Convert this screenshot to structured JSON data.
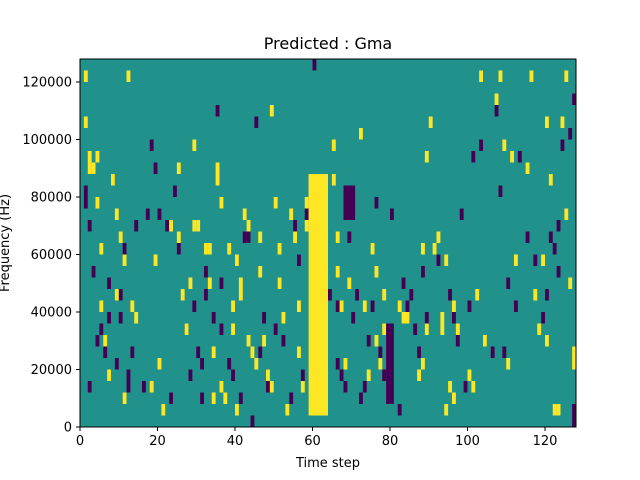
{
  "chart_data": {
    "type": "heatmap",
    "title": "Predicted : Gma",
    "xlabel": "Time step",
    "ylabel": "Frequency (Hz)",
    "xlim": [
      0,
      128
    ],
    "ylim": [
      0,
      128000
    ],
    "x_ticks": [
      0,
      20,
      40,
      60,
      80,
      100,
      120
    ],
    "y_ticks": [
      0,
      20000,
      40000,
      60000,
      80000,
      100000,
      120000
    ],
    "cell_height_hz": 4000,
    "background_value": 0,
    "colormap": {
      "-1": "#440154",
      "0": "#21918c",
      "1": "#fde725"
    },
    "dense_columns": [
      {
        "x0": 59,
        "x1": 64,
        "y0": 4000,
        "y1": 88000,
        "value": 1,
        "note": "central bright vertical band"
      },
      {
        "x0": 68,
        "x1": 71,
        "y0": 72000,
        "y1": 84000,
        "value": -1
      },
      {
        "x0": 79,
        "x1": 81,
        "y0": 8000,
        "y1": 36000,
        "value": -1
      }
    ],
    "cells_high": [
      [
        1,
        120000
      ],
      [
        1,
        104000
      ],
      [
        2,
        92000
      ],
      [
        2,
        88000
      ],
      [
        3,
        88000
      ],
      [
        4,
        92000
      ],
      [
        4,
        76000
      ],
      [
        5,
        60000
      ],
      [
        5,
        40000
      ],
      [
        6,
        28000
      ],
      [
        7,
        16000
      ],
      [
        8,
        84000
      ],
      [
        9,
        72000
      ],
      [
        9,
        44000
      ],
      [
        10,
        64000
      ],
      [
        11,
        56000
      ],
      [
        11,
        8000
      ],
      [
        12,
        120000
      ],
      [
        13,
        40000
      ],
      [
        14,
        36000
      ],
      [
        18,
        12000
      ],
      [
        19,
        56000
      ],
      [
        20,
        20000
      ],
      [
        21,
        4000
      ],
      [
        23,
        68000
      ],
      [
        25,
        88000
      ],
      [
        25,
        64000
      ],
      [
        26,
        44000
      ],
      [
        27,
        32000
      ],
      [
        28,
        48000
      ],
      [
        29,
        68000
      ],
      [
        30,
        68000
      ],
      [
        29,
        96000
      ],
      [
        32,
        60000
      ],
      [
        33,
        60000
      ],
      [
        33,
        48000
      ],
      [
        34,
        24000
      ],
      [
        34,
        8000
      ],
      [
        35,
        84000
      ],
      [
        35,
        88000
      ],
      [
        36,
        12000
      ],
      [
        36,
        76000
      ],
      [
        37,
        8000
      ],
      [
        38,
        60000
      ],
      [
        39,
        40000
      ],
      [
        39,
        32000
      ],
      [
        40,
        56000
      ],
      [
        40,
        4000
      ],
      [
        41,
        44000
      ],
      [
        41,
        48000
      ],
      [
        42,
        72000
      ],
      [
        43,
        68000
      ],
      [
        43,
        28000
      ],
      [
        44,
        24000
      ],
      [
        45,
        20000
      ],
      [
        46,
        52000
      ],
      [
        46,
        64000
      ],
      [
        47,
        28000
      ],
      [
        48,
        16000
      ],
      [
        49,
        12000
      ],
      [
        49,
        108000
      ],
      [
        50,
        76000
      ],
      [
        51,
        60000
      ],
      [
        51,
        48000
      ],
      [
        52,
        36000
      ],
      [
        53,
        4000
      ],
      [
        54,
        72000
      ],
      [
        55,
        64000
      ],
      [
        56,
        40000
      ],
      [
        56,
        24000
      ],
      [
        57,
        12000
      ],
      [
        58,
        76000
      ],
      [
        58,
        68000
      ],
      [
        59,
        80000
      ],
      [
        59,
        84000
      ],
      [
        65,
        96000
      ],
      [
        65,
        84000
      ],
      [
        66,
        64000
      ],
      [
        66,
        52000
      ],
      [
        67,
        40000
      ],
      [
        68,
        20000
      ],
      [
        69,
        48000
      ],
      [
        72,
        100000
      ],
      [
        73,
        40000
      ],
      [
        74,
        16000
      ],
      [
        75,
        60000
      ],
      [
        76,
        52000
      ],
      [
        76,
        28000
      ],
      [
        77,
        20000
      ],
      [
        78,
        44000
      ],
      [
        78,
        32000
      ],
      [
        82,
        40000
      ],
      [
        83,
        36000
      ],
      [
        84,
        36000
      ],
      [
        87,
        16000
      ],
      [
        88,
        60000
      ],
      [
        88,
        20000
      ],
      [
        89,
        92000
      ],
      [
        89,
        32000
      ],
      [
        90,
        104000
      ],
      [
        91,
        60000
      ],
      [
        92,
        64000
      ],
      [
        93,
        36000
      ],
      [
        93,
        32000
      ],
      [
        94,
        4000
      ],
      [
        94,
        56000
      ],
      [
        95,
        12000
      ],
      [
        96,
        8000
      ],
      [
        96,
        40000
      ],
      [
        97,
        32000
      ],
      [
        100,
        16000
      ],
      [
        101,
        12000
      ],
      [
        102,
        44000
      ],
      [
        103,
        120000
      ],
      [
        104,
        28000
      ],
      [
        107,
        112000
      ],
      [
        108,
        120000
      ],
      [
        109,
        96000
      ],
      [
        110,
        20000
      ],
      [
        111,
        92000
      ],
      [
        112,
        56000
      ],
      [
        115,
        88000
      ],
      [
        116,
        120000
      ],
      [
        117,
        44000
      ],
      [
        118,
        32000
      ],
      [
        119,
        56000
      ],
      [
        120,
        28000
      ],
      [
        120,
        104000
      ],
      [
        121,
        84000
      ],
      [
        122,
        4000
      ],
      [
        123,
        4000
      ],
      [
        124,
        104000
      ],
      [
        125,
        72000
      ],
      [
        125,
        120000
      ],
      [
        126,
        48000
      ],
      [
        127,
        20000
      ],
      [
        127,
        24000
      ]
    ],
    "cells_low": [
      [
        1,
        80000
      ],
      [
        1,
        76000
      ],
      [
        2,
        68000
      ],
      [
        2,
        12000
      ],
      [
        3,
        52000
      ],
      [
        4,
        28000
      ],
      [
        5,
        32000
      ],
      [
        6,
        24000
      ],
      [
        7,
        48000
      ],
      [
        7,
        36000
      ],
      [
        8,
        84000
      ],
      [
        9,
        20000
      ],
      [
        10,
        44000
      ],
      [
        10,
        36000
      ],
      [
        11,
        60000
      ],
      [
        11,
        8000
      ],
      [
        12,
        16000
      ],
      [
        12,
        12000
      ],
      [
        13,
        24000
      ],
      [
        14,
        68000
      ],
      [
        17,
        72000
      ],
      [
        16,
        12000
      ],
      [
        18,
        96000
      ],
      [
        19,
        88000
      ],
      [
        20,
        72000
      ],
      [
        22,
        68000
      ],
      [
        23,
        8000
      ],
      [
        24,
        80000
      ],
      [
        25,
        60000
      ],
      [
        27,
        32000
      ],
      [
        28,
        16000
      ],
      [
        29,
        40000
      ],
      [
        30,
        24000
      ],
      [
        31,
        20000
      ],
      [
        31,
        8000
      ],
      [
        32,
        52000
      ],
      [
        32,
        44000
      ],
      [
        34,
        36000
      ],
      [
        35,
        108000
      ],
      [
        36,
        48000
      ],
      [
        36,
        32000
      ],
      [
        38,
        20000
      ],
      [
        39,
        16000
      ],
      [
        40,
        56000
      ],
      [
        41,
        8000
      ],
      [
        42,
        64000
      ],
      [
        43,
        64000
      ],
      [
        44,
        0
      ],
      [
        45,
        104000
      ],
      [
        46,
        24000
      ],
      [
        47,
        36000
      ],
      [
        48,
        12000
      ],
      [
        50,
        32000
      ],
      [
        51,
        48000
      ],
      [
        52,
        28000
      ],
      [
        54,
        8000
      ],
      [
        55,
        68000
      ],
      [
        56,
        56000
      ],
      [
        57,
        16000
      ],
      [
        58,
        72000
      ],
      [
        59,
        76000
      ],
      [
        60,
        124000
      ],
      [
        60,
        48000
      ],
      [
        61,
        56000
      ],
      [
        64,
        44000
      ],
      [
        66,
        40000
      ],
      [
        66,
        20000
      ],
      [
        67,
        16000
      ],
      [
        68,
        12000
      ],
      [
        69,
        64000
      ],
      [
        70,
        36000
      ],
      [
        71,
        44000
      ],
      [
        72,
        8000
      ],
      [
        73,
        12000
      ],
      [
        74,
        28000
      ],
      [
        75,
        40000
      ],
      [
        76,
        76000
      ],
      [
        77,
        24000
      ],
      [
        78,
        16000
      ],
      [
        80,
        72000
      ],
      [
        82,
        4000
      ],
      [
        83,
        48000
      ],
      [
        84,
        40000
      ],
      [
        85,
        44000
      ],
      [
        86,
        32000
      ],
      [
        87,
        24000
      ],
      [
        88,
        52000
      ],
      [
        89,
        36000
      ],
      [
        92,
        56000
      ],
      [
        95,
        44000
      ],
      [
        96,
        36000
      ],
      [
        97,
        28000
      ],
      [
        98,
        72000
      ],
      [
        99,
        12000
      ],
      [
        100,
        40000
      ],
      [
        101,
        92000
      ],
      [
        103,
        96000
      ],
      [
        104,
        28000
      ],
      [
        106,
        24000
      ],
      [
        107,
        108000
      ],
      [
        108,
        80000
      ],
      [
        109,
        24000
      ],
      [
        110,
        48000
      ],
      [
        112,
        40000
      ],
      [
        113,
        92000
      ],
      [
        115,
        64000
      ],
      [
        117,
        56000
      ],
      [
        119,
        36000
      ],
      [
        120,
        44000
      ],
      [
        121,
        64000
      ],
      [
        122,
        60000
      ],
      [
        123,
        68000
      ],
      [
        123,
        52000
      ],
      [
        124,
        96000
      ],
      [
        126,
        100000
      ],
      [
        127,
        112000
      ],
      [
        127,
        4000
      ],
      [
        127,
        0
      ]
    ]
  }
}
